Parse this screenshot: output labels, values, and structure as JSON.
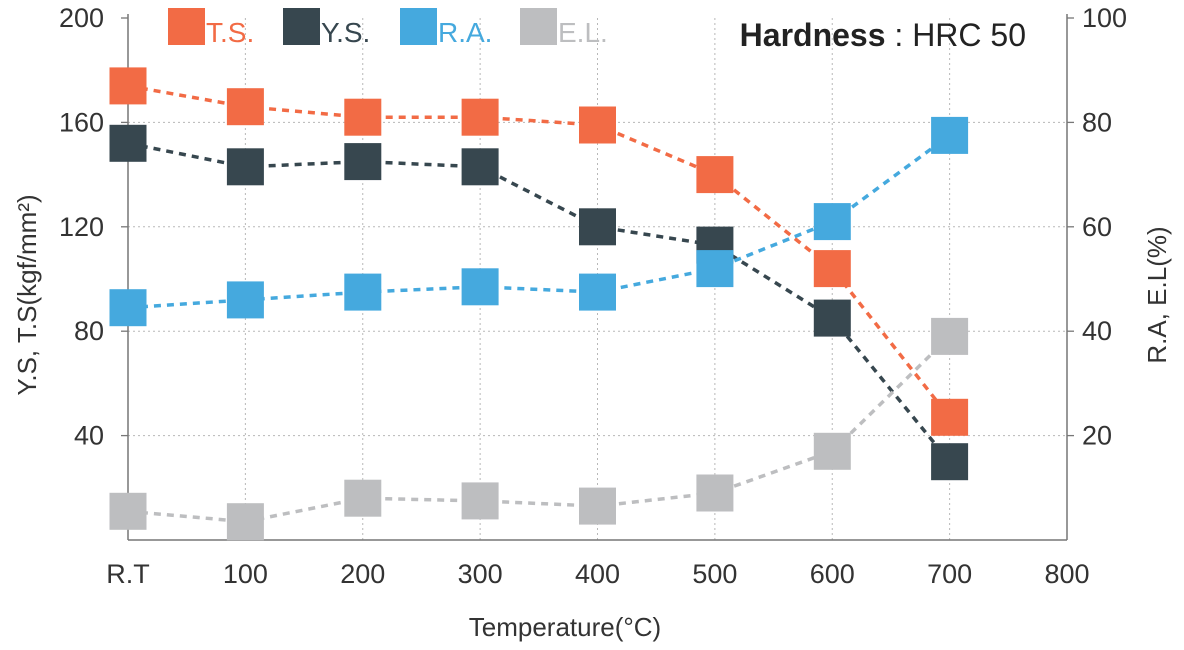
{
  "chart_data": {
    "type": "line",
    "x_tick_labels": [
      "R.T",
      "100",
      "200",
      "300",
      "400",
      "500",
      "600",
      "700",
      "800"
    ],
    "x_positions": [
      0,
      100,
      200,
      300,
      400,
      500,
      600,
      700
    ],
    "xlim": [
      0,
      800
    ],
    "xlabel": "Temperature(°C)",
    "ylabel_left": "Y.S, T.S(kgf/mm²)",
    "ylabel_right": "R.A, E.L(%)",
    "ylim_left": [
      0,
      200
    ],
    "ylim_right": [
      0,
      100
    ],
    "y_ticks_left": [
      40,
      80,
      120,
      160,
      200
    ],
    "y_ticks_right": [
      20,
      40,
      60,
      80,
      100
    ],
    "grid": true,
    "legend_position": "top",
    "annotation": {
      "bold": "Hardness",
      "rest": " : HRC 50"
    },
    "series": [
      {
        "name": "T.S.",
        "axis": "left",
        "color": "#F26B45",
        "values": [
          174,
          166,
          162,
          162,
          159,
          140,
          104,
          47
        ]
      },
      {
        "name": "Y.S.",
        "axis": "left",
        "color": "#37474F",
        "values": [
          152,
          143,
          145,
          143,
          120,
          113,
          85,
          30
        ]
      },
      {
        "name": "R.A.",
        "axis": "right",
        "color": "#45A9DE",
        "values": [
          44.5,
          46,
          47.5,
          48.5,
          47.5,
          52,
          61,
          77.5
        ]
      },
      {
        "name": "E.L.",
        "axis": "right",
        "color": "#BDBEC0",
        "values": [
          5.5,
          3.5,
          8,
          7.5,
          6.5,
          9,
          17,
          39
        ]
      }
    ]
  }
}
